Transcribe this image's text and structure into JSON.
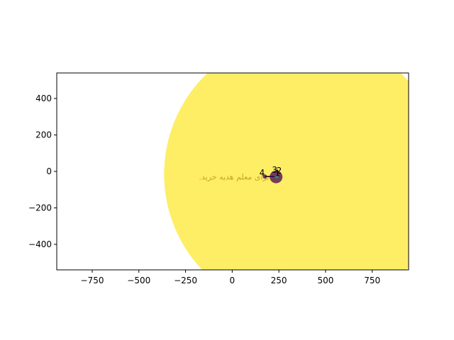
{
  "chart_data": {
    "type": "scatter",
    "title": "",
    "xlabel": "",
    "ylabel": "",
    "xlim": [
      -940,
      945
    ],
    "ylim": [
      -540,
      540
    ],
    "xticks": [
      -750,
      -500,
      -250,
      0,
      250,
      500,
      750
    ],
    "yticks": [
      -400,
      -200,
      0,
      200,
      400
    ],
    "x_tick_labels": [
      "−750",
      "−500",
      "−250",
      "0",
      "250",
      "500",
      "750"
    ],
    "y_tick_labels": [
      "−400",
      "−200",
      "0",
      "200",
      "400"
    ],
    "grid": false,
    "points": [
      {
        "label": "1",
        "x": 235,
        "y": -30,
        "marker_size": 9,
        "color": "#440154"
      },
      {
        "label": "2",
        "x": 240,
        "y": -28,
        "marker_size": 2,
        "color": "#35b779"
      },
      {
        "label": "3",
        "x": 235,
        "y": -28,
        "marker_size": 2,
        "color": "#21918c"
      },
      {
        "label": "4",
        "x": 175,
        "y": -28,
        "marker_size": 3,
        "color": "#440154"
      }
    ],
    "bubble": {
      "x": 385,
      "y": -15,
      "radius": 750,
      "color": "#fde725"
    },
    "line": {
      "x": [
        175,
        235
      ],
      "y": [
        -28,
        -28
      ],
      "color": "#000000"
    },
    "annotation": {
      "text": "برای معلم هدیه خرید.",
      "x": 10,
      "y": -30,
      "color": "#c8a520"
    }
  }
}
